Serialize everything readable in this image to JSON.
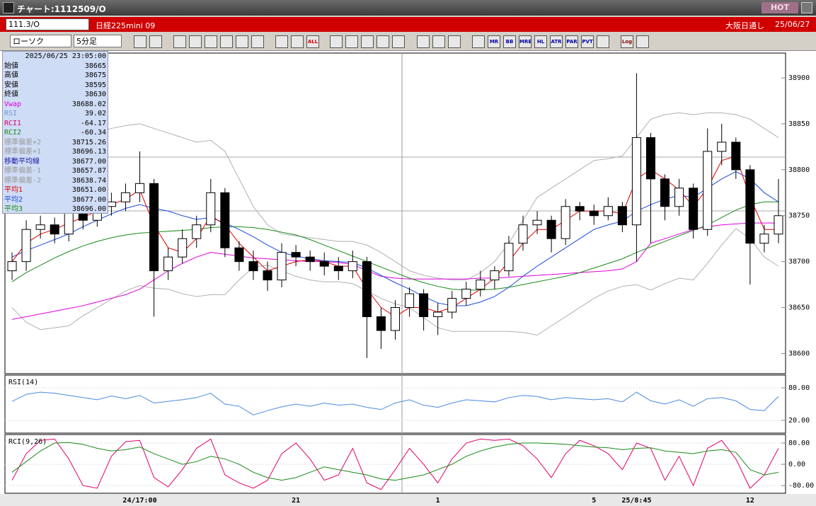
{
  "window": {
    "title": "チャート:1112509/O",
    "hot": "HOT"
  },
  "header": {
    "symbol": "111.3/O",
    "name": "日経225mini 09",
    "market": "大阪日通し",
    "date": "25/06/27"
  },
  "toolbar": {
    "chart_style": "ローソク",
    "interval": "5分足",
    "icon_labels": [
      "ALL",
      "MR",
      "BB",
      "MRE",
      "HL",
      "ATR",
      "PAR",
      "PVT",
      "Log"
    ]
  },
  "info_panel": {
    "datetime": "2025/06/25 23:05:00",
    "rows": [
      {
        "label": "始値",
        "value": "38665",
        "color": "#000000"
      },
      {
        "label": "高値",
        "value": "38675",
        "color": "#000000"
      },
      {
        "label": "安値",
        "value": "38595",
        "color": "#000000"
      },
      {
        "label": "終値",
        "value": "38630",
        "color": "#000000"
      },
      {
        "label": "Vwap",
        "value": "38688.02",
        "color": "#e000e0"
      },
      {
        "label": "RSI",
        "value": "39.02",
        "color": "#6a9ad8"
      },
      {
        "label": "RCI1",
        "value": "-64.17",
        "color": "#e0006a"
      },
      {
        "label": "RCI2",
        "value": "-60.34",
        "color": "#1a8a1a"
      },
      {
        "label": "標準偏差+2",
        "value": "38715.26",
        "color": "#9a9a9a"
      },
      {
        "label": "標準偏差+1",
        "value": "38696.13",
        "color": "#9a9a9a"
      },
      {
        "label": "移動平均線",
        "value": "38677.00",
        "color": "#1a1aa0"
      },
      {
        "label": "標準偏差-1",
        "value": "38657.87",
        "color": "#9a9a9a"
      },
      {
        "label": "標準偏差-2",
        "value": "38638.74",
        "color": "#9a9a9a"
      },
      {
        "label": "平均1",
        "value": "38651.00",
        "color": "#e00000"
      },
      {
        "label": "平均2",
        "value": "38677.00",
        "color": "#1a4ae0"
      },
      {
        "label": "平均3",
        "value": "38696.00",
        "color": "#1a8a1a"
      }
    ]
  },
  "chart_data": [
    {
      "type": "candlestick",
      "up_color": "#ffffff",
      "down_color": "#000000",
      "ylim": [
        38578,
        38927
      ],
      "yticks": [
        38600,
        38650,
        38700,
        38750,
        38800,
        38850,
        38900
      ],
      "categories": [
        null,
        null,
        null,
        null,
        null,
        null,
        null,
        null,
        null,
        "24/17:00",
        null,
        null,
        null,
        null,
        null,
        null,
        null,
        null,
        null,
        null,
        "21",
        null,
        null,
        null,
        null,
        null,
        null,
        null,
        null,
        null,
        "1",
        null,
        null,
        null,
        null,
        null,
        null,
        null,
        null,
        null,
        null,
        "5",
        null,
        null,
        "25/8:45",
        null,
        null,
        null,
        null,
        null,
        null,
        null,
        "12",
        null,
        null
      ],
      "open": [
        38690,
        38700,
        38735,
        38740,
        38730,
        38755,
        38745,
        38760,
        38765,
        38775,
        38785,
        38690,
        38705,
        38725,
        38740,
        38775,
        38715,
        38700,
        38690,
        38680,
        38710,
        38705,
        38700,
        38695,
        38690,
        38700,
        38640,
        38625,
        38650,
        38665,
        38640,
        38645,
        38660,
        38670,
        38680,
        38690,
        38720,
        38740,
        38745,
        38725,
        38760,
        38755,
        38750,
        38760,
        38740,
        38835,
        38790,
        38760,
        38780,
        38735,
        38820,
        38830,
        38800,
        38720,
        38730
      ],
      "high": [
        38710,
        38745,
        38750,
        38748,
        38765,
        38762,
        38770,
        38775,
        38785,
        38820,
        38790,
        38715,
        38735,
        38750,
        38790,
        38780,
        38722,
        38712,
        38700,
        38720,
        38718,
        38712,
        38710,
        38705,
        38712,
        38705,
        38650,
        38658,
        38672,
        38670,
        38655,
        38668,
        38678,
        38690,
        38695,
        38728,
        38750,
        38755,
        38750,
        38768,
        38765,
        38762,
        38770,
        38765,
        38905,
        38840,
        38795,
        38790,
        38785,
        38845,
        38850,
        38835,
        38805,
        38740,
        38790
      ],
      "low": [
        38680,
        38690,
        38725,
        38720,
        38722,
        38735,
        38738,
        38750,
        38755,
        38765,
        38640,
        38680,
        38698,
        38715,
        38732,
        38705,
        38690,
        38680,
        38668,
        38672,
        38695,
        38690,
        38685,
        38680,
        38682,
        38595,
        38605,
        38615,
        38640,
        38625,
        38620,
        38638,
        38652,
        38662,
        38670,
        38684,
        38712,
        38730,
        38710,
        38718,
        38745,
        38740,
        38745,
        38732,
        38700,
        38720,
        38745,
        38750,
        38725,
        38728,
        38805,
        38790,
        38675,
        38710,
        38720
      ],
      "close": [
        38700,
        38735,
        38740,
        38730,
        38755,
        38745,
        38760,
        38765,
        38775,
        38785,
        38690,
        38705,
        38725,
        38740,
        38775,
        38715,
        38700,
        38690,
        38680,
        38710,
        38705,
        38700,
        38695,
        38690,
        38700,
        38640,
        38625,
        38650,
        38665,
        38640,
        38645,
        38660,
        38670,
        38680,
        38690,
        38720,
        38740,
        38745,
        38725,
        38760,
        38755,
        38750,
        38760,
        38740,
        38835,
        38790,
        38760,
        38780,
        38735,
        38820,
        38830,
        38800,
        38720,
        38730,
        38750
      ],
      "lines": [
        {
          "color": "#b0b0b0",
          "values": [
            38760,
            38790,
            38810,
            38820,
            38830,
            38835,
            38840,
            38845,
            38848,
            38850,
            38845,
            38840,
            38835,
            38830,
            38832,
            38820,
            38790,
            38760,
            38740,
            38730,
            38728,
            38726,
            38724,
            38722,
            38722,
            38718,
            38710,
            38700,
            38690,
            38685,
            38682,
            38680,
            38680,
            38688,
            38700,
            38720,
            38745,
            38770,
            38780,
            38790,
            38800,
            38810,
            38812,
            38815,
            38835,
            38855,
            38860,
            38862,
            38860,
            38862,
            38862,
            38860,
            38855,
            38845,
            38835
          ]
        },
        {
          "color": "#b0b0b0",
          "values": [
            38650,
            38634,
            38626,
            38628,
            38630,
            38641,
            38650,
            38659,
            38668,
            38674,
            38671,
            38670,
            38665,
            38662,
            38664,
            38664,
            38680,
            38694,
            38696,
            38690,
            38684,
            38680,
            38678,
            38678,
            38676,
            38668,
            38660,
            38654,
            38650,
            38639,
            38628,
            38624,
            38624,
            38624,
            38624,
            38624,
            38623,
            38620,
            38630,
            38640,
            38650,
            38660,
            38668,
            38673,
            38675,
            38669,
            38676,
            38682,
            38680,
            38698,
            38718,
            38736,
            38725,
            38705,
            38695
          ]
        },
        {
          "color": "#e000e0",
          "values": [
            38637,
            38640,
            38643,
            38646,
            38649,
            38652,
            38656,
            38660,
            38664,
            38670,
            38680,
            38690,
            38698,
            38705,
            38710,
            38708,
            38706,
            38704,
            38703,
            38702,
            38701,
            38700,
            38700,
            38699,
            38697,
            38690,
            38684,
            38682,
            38681,
            38681,
            38681,
            38681,
            38681,
            38682,
            38682,
            38683,
            38684,
            38685,
            38686,
            38687,
            38688,
            38689,
            38690,
            38692,
            38700,
            38720,
            38725,
            38730,
            38735,
            38738,
            38740,
            38741,
            38742,
            38742,
            38742
          ]
        },
        {
          "color": "#1a8a1a",
          "values": [
            38678,
            38688,
            38696,
            38704,
            38711,
            38717,
            38722,
            38726,
            38729,
            38731,
            38732,
            38733,
            38734,
            38735,
            38737,
            38738,
            38738,
            38737,
            38735,
            38732,
            38729,
            38724,
            38718,
            38712,
            38706,
            38700,
            38694,
            38688,
            38682,
            38677,
            38673,
            38670,
            38669,
            38669,
            38670,
            38672,
            38675,
            38678,
            38681,
            38684,
            38688,
            38693,
            38698,
            38703,
            38710,
            38716,
            38722,
            38728,
            38734,
            38740,
            38748,
            38756,
            38762,
            38765,
            38765
          ]
        },
        {
          "color": "#1a4ae0",
          "values": [
            38705,
            38712,
            38718,
            38724,
            38730,
            38738,
            38745,
            38752,
            38758,
            38762,
            38758,
            38755,
            38750,
            38746,
            38748,
            38742,
            38735,
            38727,
            38718,
            38710,
            38706,
            38703,
            38701,
            38700,
            38699,
            38693,
            38685,
            38677,
            38670,
            38662,
            38655,
            38652,
            38652,
            38656,
            38662,
            38672,
            38684,
            38695,
            38705,
            38715,
            38725,
            38735,
            38740,
            38744,
            38755,
            38762,
            38768,
            38772,
            38770,
            38780,
            38790,
            38798,
            38790,
            38775,
            38765
          ]
        },
        {
          "color": "#e00000",
          "values": [
            38700,
            38720,
            38730,
            38735,
            38742,
            38748,
            38755,
            38762,
            38768,
            38778,
            38740,
            38715,
            38710,
            38725,
            38750,
            38740,
            38720,
            38705,
            38690,
            38695,
            38700,
            38702,
            38700,
            38695,
            38695,
            38670,
            38650,
            38640,
            38650,
            38650,
            38645,
            38650,
            38660,
            38670,
            38682,
            38700,
            38720,
            38735,
            38735,
            38745,
            38755,
            38755,
            38755,
            38752,
            38790,
            38800,
            38790,
            38778,
            38760,
            38780,
            38810,
            38815,
            38770,
            38735,
            38735
          ]
        }
      ]
    },
    {
      "type": "line",
      "title": "RSI(14)",
      "grid": true,
      "ylim": [
        -3.5,
        103.5
      ],
      "yticks": [
        {
          "value": 20,
          "label": "20.00"
        },
        {
          "value": 80,
          "label": "80.00"
        }
      ],
      "series": [
        {
          "color": "#4a8ae0",
          "values": [
            55,
            68,
            72,
            70,
            66,
            62,
            58,
            65,
            60,
            66,
            52,
            55,
            58,
            62,
            70,
            50,
            46,
            30,
            38,
            45,
            50,
            46,
            52,
            48,
            50,
            44,
            40,
            52,
            58,
            48,
            44,
            52,
            58,
            56,
            54,
            62,
            66,
            64,
            58,
            62,
            60,
            58,
            60,
            54,
            72,
            56,
            50,
            58,
            46,
            60,
            62,
            56,
            40,
            38,
            64
          ]
        }
      ]
    },
    {
      "type": "line",
      "title": "RCI(9,26)",
      "grid": true,
      "ylim": [
        -109,
        112
      ],
      "yticks": [
        {
          "value": -80,
          "label": "-80.00"
        },
        {
          "value": 0,
          "label": "0.00"
        },
        {
          "value": 80,
          "label": "80.00"
        }
      ],
      "series": [
        {
          "color": "#e0006a",
          "values": [
            -60,
            40,
            90,
            95,
            20,
            -80,
            -90,
            30,
            85,
            90,
            -50,
            -85,
            -20,
            60,
            95,
            -40,
            -70,
            -90,
            -60,
            40,
            80,
            20,
            -60,
            -40,
            60,
            -70,
            -95,
            -20,
            60,
            0,
            -70,
            20,
            80,
            95,
            90,
            95,
            70,
            20,
            -50,
            40,
            90,
            70,
            40,
            -20,
            80,
            60,
            -60,
            30,
            -80,
            60,
            90,
            20,
            -90,
            -40,
            60
          ]
        },
        {
          "color": "#1a8a1a",
          "values": [
            -30,
            10,
            50,
            80,
            82,
            75,
            60,
            50,
            55,
            65,
            40,
            20,
            0,
            10,
            30,
            20,
            0,
            -30,
            -50,
            -60,
            -50,
            -30,
            -10,
            -20,
            -30,
            -40,
            -55,
            -60,
            -50,
            -40,
            -20,
            0,
            30,
            50,
            65,
            75,
            80,
            80,
            78,
            75,
            70,
            65,
            62,
            55,
            60,
            62,
            50,
            45,
            40,
            50,
            55,
            45,
            -20,
            -40,
            -30
          ]
        }
      ]
    }
  ]
}
